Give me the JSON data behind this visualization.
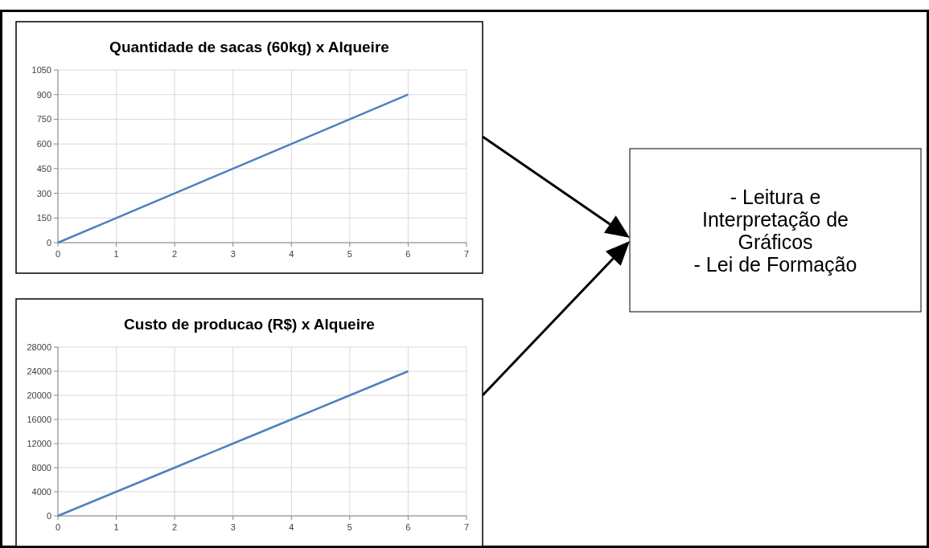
{
  "chart_data": [
    {
      "type": "line",
      "title": "Quantidade de sacas (60kg) x Alqueire",
      "x": [
        0,
        1,
        2,
        3,
        4,
        5,
        6
      ],
      "series": [
        {
          "color": "#4f81bd",
          "values": [
            0,
            150,
            300,
            450,
            600,
            750,
            900
          ]
        }
      ],
      "xlim": [
        0,
        7
      ],
      "xticks": [
        0,
        1,
        2,
        3,
        4,
        5,
        6,
        7
      ],
      "ylim": [
        0,
        1050
      ],
      "yticks": [
        0,
        150,
        300,
        450,
        600,
        750,
        900,
        1050
      ],
      "grid": true
    },
    {
      "type": "line",
      "title": "Custo de producao (R$) x Alqueire",
      "x": [
        0,
        1,
        2,
        3,
        4,
        5,
        6
      ],
      "series": [
        {
          "color": "#4f81bd",
          "values": [
            0,
            4000,
            8000,
            12000,
            16000,
            20000,
            24000
          ]
        }
      ],
      "xlim": [
        0,
        7
      ],
      "xticks": [
        0,
        1,
        2,
        3,
        4,
        5,
        6,
        7
      ],
      "ylim": [
        0,
        28000
      ],
      "yticks": [
        0,
        4000,
        8000,
        12000,
        16000,
        20000,
        24000,
        28000
      ],
      "grid": true
    },
    {
      "type": "other",
      "annotations": [
        "- Leitura e Interpretação de Gráficos",
        "- Lei de Formação"
      ]
    }
  ]
}
